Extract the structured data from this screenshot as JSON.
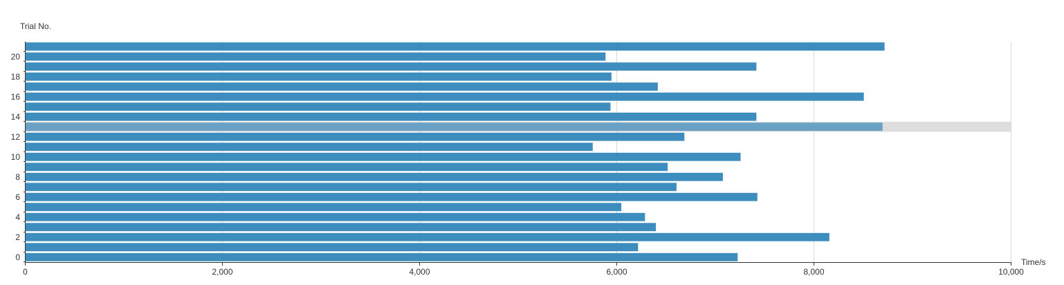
{
  "chart_data": {
    "type": "bar",
    "orientation": "horizontal",
    "categories": [
      0,
      1,
      2,
      3,
      4,
      5,
      6,
      7,
      8,
      9,
      10,
      11,
      12,
      13,
      14,
      15,
      16,
      17,
      18,
      19,
      20,
      21
    ],
    "values": [
      7230,
      6220,
      8160,
      6400,
      6290,
      6050,
      7430,
      6610,
      7080,
      6520,
      7260,
      5760,
      6690,
      8700,
      7420,
      5940,
      8510,
      6420,
      5950,
      7420,
      5890,
      8720
    ],
    "highlighted_index": 13,
    "y_tick_labels": [
      "0",
      "2",
      "4",
      "6",
      "8",
      "10",
      "12",
      "14",
      "16",
      "18",
      "20"
    ],
    "x_tick_labels": [
      "0",
      "2,000",
      "4,000",
      "6,000",
      "8,000",
      "10,000"
    ],
    "xlim": [
      0,
      10000
    ],
    "xlabel": "Time/s",
    "ylabel": "Trial No.",
    "grid": "vertical",
    "colors": {
      "bar": "#3d8dbf",
      "bar_highlight": "#6aa0c4",
      "highlight_band": "#dddddd",
      "grid": "#d9d9d9",
      "axis": "#333333",
      "text": "#333333"
    }
  }
}
